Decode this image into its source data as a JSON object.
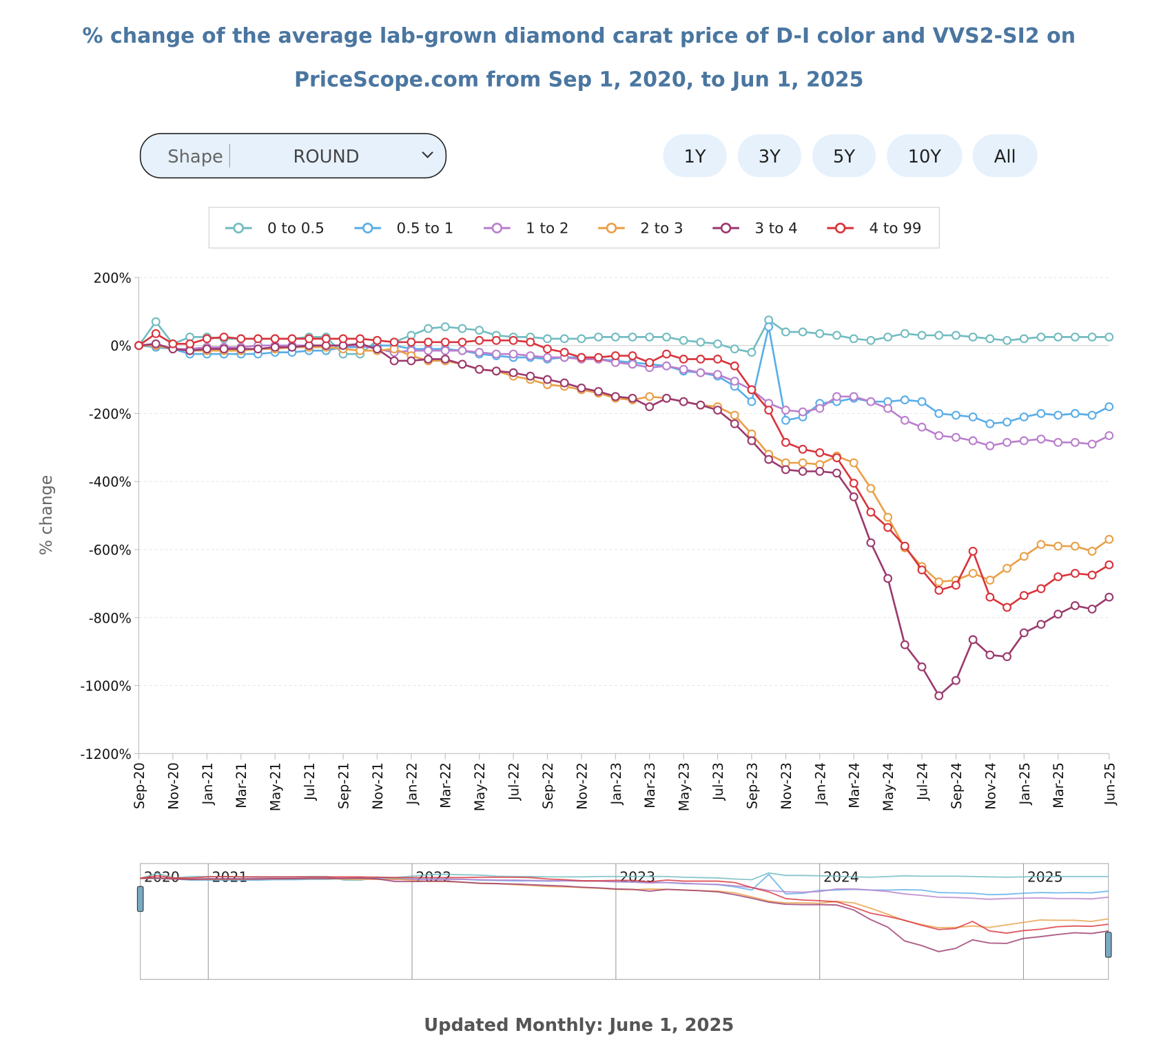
{
  "chart_data": {
    "type": "line",
    "title": "% change of the average lab-grown diamond carat price of D-I color and VVS2-SI2 on",
    "subtitle": "PriceScope.com from Sep 1, 2020, to Jun 1, 2025",
    "y_label": "% change",
    "footer": "Updated Monthly: June 1, 2025",
    "controls": {
      "shape_label": "Shape",
      "shape_value": "ROUND",
      "ranges": [
        "1Y",
        "3Y",
        "5Y",
        "10Y",
        "All"
      ]
    },
    "navigator_labels": [
      "2020",
      "2021",
      "2022",
      "2023",
      "2024",
      "2025"
    ],
    "categories": [
      "Sep-20",
      null,
      "Nov-20",
      null,
      "Jan-21",
      null,
      "Mar-21",
      null,
      "May-21",
      null,
      "Jul-21",
      null,
      "Sep-21",
      null,
      "Nov-21",
      null,
      "Jan-22",
      null,
      "Mar-22",
      null,
      "May-22",
      null,
      "Jul-22",
      null,
      "Sep-22",
      null,
      "Nov-22",
      null,
      "Jan-23",
      null,
      "Mar-23",
      null,
      "May-23",
      null,
      "Jul-23",
      null,
      "Sep-23",
      null,
      "Nov-23",
      null,
      "Jan-24",
      null,
      "Mar-24",
      null,
      "May-24",
      null,
      "Jul-24",
      null,
      "Sep-24",
      null,
      "Nov-24",
      null,
      "Jan-25",
      null,
      "Mar-25",
      null,
      null,
      "Jun-25"
    ],
    "ylim": [
      -1200,
      200
    ],
    "yticks": [
      {
        "value": 200,
        "label": "200%"
      },
      {
        "value": 0,
        "label": "0%"
      },
      {
        "value": -200,
        "label": "-200%"
      },
      {
        "value": -400,
        "label": "-400%"
      },
      {
        "value": -600,
        "label": "-600%"
      },
      {
        "value": -800,
        "label": "-800%"
      },
      {
        "value": -1000,
        "label": "-1000%"
      },
      {
        "value": -1200,
        "label": "-1200%"
      }
    ],
    "grid": true,
    "legend": "top",
    "series": [
      {
        "name": "0 to 0.5",
        "color": "#72bcc0",
        "values": [
          0,
          70,
          5,
          25,
          25,
          20,
          20,
          20,
          20,
          20,
          25,
          25,
          -25,
          -25,
          15,
          10,
          30,
          50,
          55,
          50,
          45,
          30,
          25,
          25,
          20,
          20,
          20,
          25,
          25,
          25,
          25,
          25,
          15,
          10,
          5,
          -10,
          -20,
          75,
          40,
          40,
          35,
          30,
          20,
          15,
          25,
          35,
          30,
          30,
          30,
          25,
          20,
          15,
          20,
          25,
          25,
          25,
          25,
          25
        ]
      },
      {
        "name": "0.5 to 1",
        "color": "#5aaee8",
        "values": [
          0,
          -5,
          -10,
          -25,
          -25,
          -25,
          -25,
          -25,
          -20,
          -20,
          -15,
          -15,
          -5,
          -5,
          0,
          0,
          -10,
          -10,
          -10,
          -15,
          -25,
          -30,
          -35,
          -35,
          -40,
          -35,
          -35,
          -40,
          -45,
          -50,
          -55,
          -60,
          -75,
          -80,
          -90,
          -120,
          -165,
          55,
          -220,
          -210,
          -170,
          -165,
          -155,
          -165,
          -165,
          -160,
          -165,
          -200,
          -205,
          -210,
          -230,
          -225,
          -210,
          -200,
          -205,
          -200,
          -205,
          -180
        ]
      },
      {
        "name": "1 to 2",
        "color": "#b980cc",
        "values": [
          0,
          0,
          -10,
          -10,
          -5,
          -5,
          -5,
          0,
          0,
          0,
          0,
          0,
          0,
          0,
          -10,
          -20,
          -15,
          -15,
          -15,
          -15,
          -20,
          -25,
          -25,
          -30,
          -35,
          -35,
          -40,
          -40,
          -50,
          -55,
          -65,
          -60,
          -70,
          -80,
          -85,
          -105,
          -130,
          -170,
          -190,
          -195,
          -185,
          -150,
          -150,
          -165,
          -185,
          -220,
          -240,
          -265,
          -270,
          -280,
          -295,
          -285,
          -280,
          -275,
          -285,
          -285,
          -290,
          -265
        ]
      },
      {
        "name": "2 to 3",
        "color": "#e9a048",
        "values": [
          0,
          0,
          -10,
          -15,
          -15,
          -15,
          -15,
          -10,
          -10,
          -5,
          -5,
          -5,
          -10,
          -15,
          -15,
          -10,
          -30,
          -45,
          -45,
          -55,
          -70,
          -75,
          -90,
          -100,
          -115,
          -120,
          -130,
          -140,
          -155,
          -160,
          -150,
          -155,
          -165,
          -175,
          -180,
          -205,
          -260,
          -320,
          -345,
          -345,
          -350,
          -325,
          -345,
          -420,
          -505,
          -595,
          -650,
          -695,
          -690,
          -670,
          -690,
          -655,
          -620,
          -585,
          -590,
          -590,
          -605,
          -570
        ]
      },
      {
        "name": "3 to 4",
        "color": "#9b3a6e",
        "values": [
          0,
          5,
          -10,
          -15,
          -10,
          -10,
          -10,
          -10,
          -5,
          -5,
          0,
          0,
          0,
          5,
          -10,
          -45,
          -45,
          -40,
          -40,
          -55,
          -70,
          -75,
          -80,
          -90,
          -100,
          -110,
          -125,
          -135,
          -150,
          -155,
          -180,
          -155,
          -165,
          -175,
          -190,
          -230,
          -280,
          -335,
          -365,
          -370,
          -370,
          -375,
          -445,
          -580,
          -685,
          -880,
          -945,
          -1030,
          -985,
          -865,
          -910,
          -915,
          -845,
          -820,
          -790,
          -765,
          -775,
          -740
        ]
      },
      {
        "name": "4 to 99",
        "color": "#d9343c",
        "values": [
          0,
          35,
          5,
          5,
          20,
          25,
          20,
          20,
          20,
          20,
          20,
          20,
          20,
          20,
          15,
          10,
          10,
          10,
          10,
          10,
          15,
          15,
          15,
          10,
          -10,
          -20,
          -35,
          -35,
          -30,
          -30,
          -50,
          -25,
          -40,
          -40,
          -40,
          -60,
          -130,
          -190,
          -285,
          -305,
          -315,
          -330,
          -405,
          -490,
          -535,
          -590,
          -660,
          -720,
          -705,
          -605,
          -740,
          -770,
          -735,
          -715,
          -680,
          -670,
          -675,
          -645
        ]
      }
    ]
  }
}
